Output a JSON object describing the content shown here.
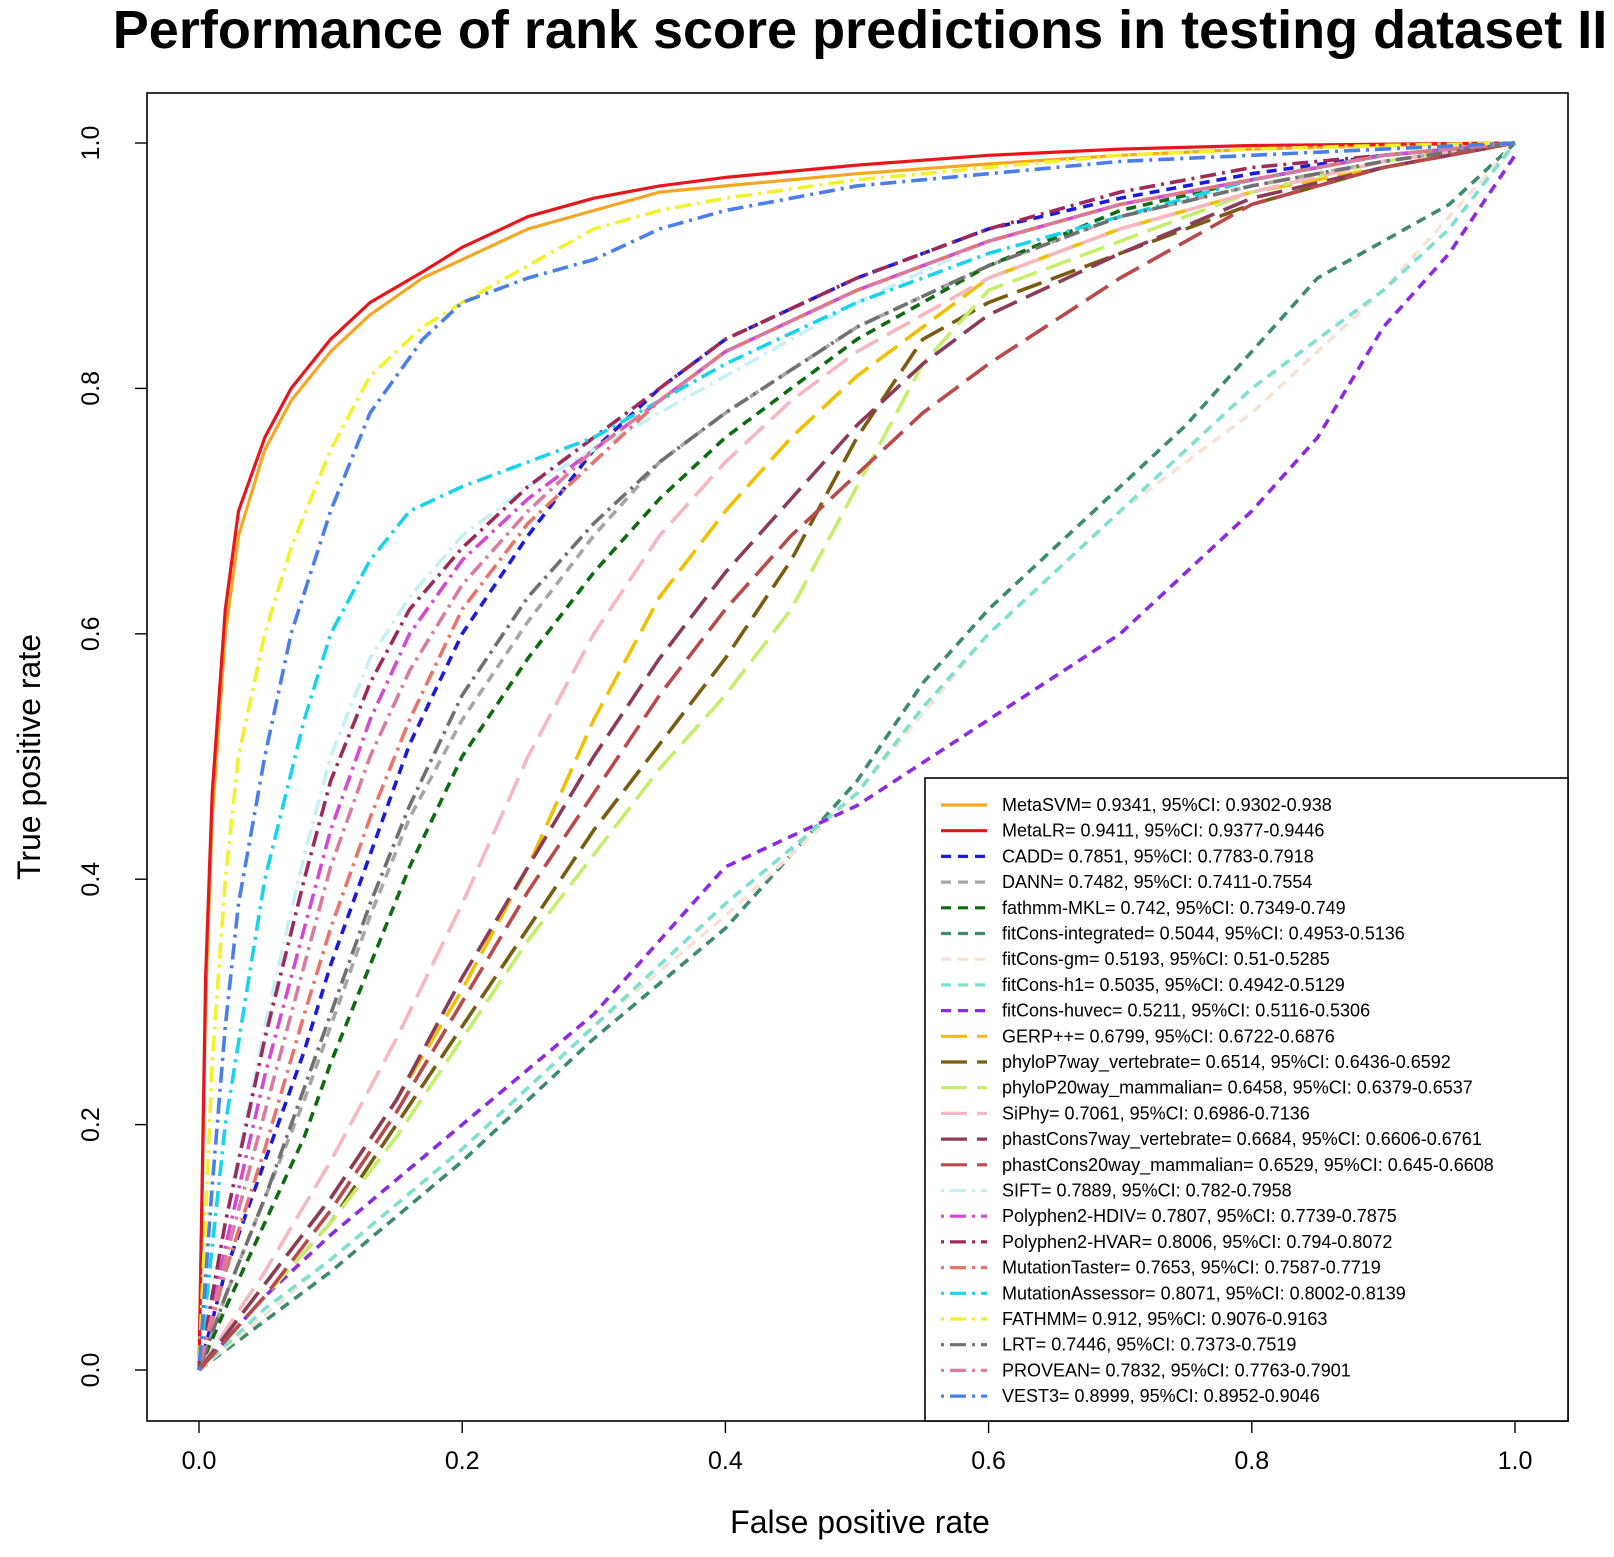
{
  "chart_data": {
    "type": "line",
    "title": "Performance of rank score predictions in testing dataset II",
    "xlabel": "False positive rate",
    "ylabel": "True positive rate",
    "xlim": [
      0,
      1
    ],
    "ylim": [
      0,
      1
    ],
    "xticks": [
      "0.0",
      "0.2",
      "0.4",
      "0.6",
      "0.8",
      "1.0"
    ],
    "yticks": [
      "0.0",
      "0.2",
      "0.4",
      "0.6",
      "0.8",
      "1.0"
    ],
    "grid": false,
    "legend_position": "bottom-right",
    "series": [
      {
        "name": "MetaSVM= 0.9341, 95%CI: 0.9302-0.938",
        "color": "#f5a623",
        "dash": "solid",
        "x": [
          0,
          0.005,
          0.01,
          0.02,
          0.03,
          0.05,
          0.07,
          0.1,
          0.13,
          0.17,
          0.2,
          0.25,
          0.3,
          0.35,
          0.4,
          0.5,
          0.6,
          0.7,
          0.8,
          0.9,
          1.0
        ],
        "y": [
          0,
          0.3,
          0.45,
          0.6,
          0.68,
          0.75,
          0.79,
          0.83,
          0.86,
          0.89,
          0.905,
          0.93,
          0.945,
          0.96,
          0.965,
          0.975,
          0.983,
          0.99,
          0.995,
          0.998,
          1.0
        ]
      },
      {
        "name": "MetaLR= 0.9411, 95%CI: 0.9377-0.9446",
        "color": "#e8161c",
        "dash": "solid",
        "x": [
          0,
          0.005,
          0.01,
          0.02,
          0.03,
          0.05,
          0.07,
          0.1,
          0.13,
          0.17,
          0.2,
          0.25,
          0.3,
          0.35,
          0.4,
          0.5,
          0.6,
          0.7,
          0.8,
          0.9,
          1.0
        ],
        "y": [
          0,
          0.32,
          0.47,
          0.62,
          0.7,
          0.76,
          0.8,
          0.84,
          0.87,
          0.895,
          0.915,
          0.94,
          0.955,
          0.965,
          0.972,
          0.982,
          0.99,
          0.995,
          0.998,
          0.999,
          1.0
        ]
      },
      {
        "name": "CADD= 0.7851, 95%CI: 0.7783-0.7918",
        "color": "#1a1adb",
        "dash": "dash",
        "x": [
          0,
          0.02,
          0.05,
          0.08,
          0.1,
          0.13,
          0.16,
          0.2,
          0.25,
          0.3,
          0.35,
          0.4,
          0.5,
          0.6,
          0.7,
          0.8,
          0.9,
          1.0
        ],
        "y": [
          0,
          0.08,
          0.17,
          0.26,
          0.33,
          0.42,
          0.51,
          0.6,
          0.68,
          0.75,
          0.8,
          0.84,
          0.89,
          0.93,
          0.955,
          0.975,
          0.99,
          1.0
        ]
      },
      {
        "name": "DANN= 0.7482, 95%CI: 0.7411-0.7554",
        "color": "#a6a6a6",
        "dash": "dash",
        "x": [
          0,
          0.02,
          0.05,
          0.08,
          0.1,
          0.13,
          0.16,
          0.2,
          0.25,
          0.3,
          0.35,
          0.4,
          0.5,
          0.6,
          0.7,
          0.8,
          0.9,
          1.0
        ],
        "y": [
          0,
          0.06,
          0.14,
          0.22,
          0.28,
          0.37,
          0.45,
          0.53,
          0.61,
          0.68,
          0.74,
          0.78,
          0.85,
          0.9,
          0.94,
          0.965,
          0.985,
          1.0
        ]
      },
      {
        "name": "fathmm-MKL= 0.742, 95%CI: 0.7349-0.749",
        "color": "#0f6b0f",
        "dash": "dash",
        "x": [
          0,
          0.02,
          0.05,
          0.08,
          0.1,
          0.13,
          0.16,
          0.2,
          0.25,
          0.3,
          0.35,
          0.4,
          0.5,
          0.6,
          0.7,
          0.8,
          0.9,
          1.0
        ],
        "y": [
          0,
          0.05,
          0.12,
          0.19,
          0.25,
          0.33,
          0.41,
          0.5,
          0.58,
          0.65,
          0.71,
          0.76,
          0.84,
          0.9,
          0.945,
          0.97,
          0.99,
          1.0
        ]
      },
      {
        "name": "fitCons-integrated= 0.5044, 95%CI: 0.4953-0.5136",
        "color": "#3d8a6e",
        "dash": "dash",
        "x": [
          0,
          0.05,
          0.1,
          0.2,
          0.3,
          0.4,
          0.5,
          0.55,
          0.6,
          0.65,
          0.7,
          0.75,
          0.8,
          0.85,
          0.9,
          0.95,
          1.0
        ],
        "y": [
          0,
          0.04,
          0.08,
          0.17,
          0.27,
          0.36,
          0.48,
          0.56,
          0.62,
          0.67,
          0.72,
          0.77,
          0.83,
          0.89,
          0.92,
          0.95,
          1.0
        ]
      },
      {
        "name": "fitCons-gm= 0.5193, 95%CI: 0.51-0.5285",
        "color": "#f6e3d3",
        "dash": "dash",
        "x": [
          0,
          0.1,
          0.2,
          0.3,
          0.4,
          0.5,
          0.6,
          0.7,
          0.8,
          0.9,
          1.0
        ],
        "y": [
          0,
          0.09,
          0.18,
          0.28,
          0.37,
          0.47,
          0.6,
          0.7,
          0.78,
          0.88,
          1.0
        ]
      },
      {
        "name": "fitCons-h1= 0.5035, 95%CI: 0.4942-0.5129",
        "color": "#7fe0d0",
        "dash": "dash",
        "x": [
          0,
          0.05,
          0.1,
          0.2,
          0.3,
          0.4,
          0.5,
          0.55,
          0.6,
          0.65,
          0.7,
          0.75,
          0.8,
          0.85,
          0.9,
          0.95,
          1.0
        ],
        "y": [
          0,
          0.05,
          0.09,
          0.18,
          0.28,
          0.38,
          0.47,
          0.54,
          0.6,
          0.65,
          0.7,
          0.75,
          0.8,
          0.84,
          0.88,
          0.93,
          1.0
        ]
      },
      {
        "name": "fitCons-huvec= 0.5211, 95%CI: 0.5116-0.5306",
        "color": "#8b2ae0",
        "dash": "dash",
        "x": [
          0,
          0.05,
          0.1,
          0.2,
          0.3,
          0.4,
          0.5,
          0.6,
          0.7,
          0.75,
          0.8,
          0.85,
          0.9,
          0.95,
          1.0
        ],
        "y": [
          0,
          0.06,
          0.11,
          0.2,
          0.29,
          0.41,
          0.46,
          0.53,
          0.6,
          0.65,
          0.7,
          0.76,
          0.85,
          0.91,
          0.99
        ]
      },
      {
        "name": "GERP++= 0.6799, 95%CI: 0.6722-0.6876",
        "color": "#f0c000",
        "dash": "longdash",
        "x": [
          0,
          0.05,
          0.1,
          0.15,
          0.2,
          0.25,
          0.3,
          0.35,
          0.4,
          0.45,
          0.5,
          0.55,
          0.6,
          0.7,
          0.8,
          0.9,
          1.0
        ],
        "y": [
          0,
          0.07,
          0.14,
          0.22,
          0.31,
          0.41,
          0.53,
          0.63,
          0.7,
          0.76,
          0.81,
          0.85,
          0.89,
          0.93,
          0.96,
          0.98,
          1.0
        ]
      },
      {
        "name": "phyloP7way_vertebrate= 0.6514, 95%CI: 0.6436-0.6592",
        "color": "#7a5c10",
        "dash": "longdash",
        "x": [
          0,
          0.05,
          0.1,
          0.15,
          0.2,
          0.25,
          0.3,
          0.35,
          0.4,
          0.45,
          0.5,
          0.55,
          0.6,
          0.7,
          0.8,
          0.9,
          1.0
        ],
        "y": [
          0,
          0.06,
          0.12,
          0.2,
          0.28,
          0.36,
          0.44,
          0.51,
          0.58,
          0.66,
          0.76,
          0.84,
          0.87,
          0.91,
          0.95,
          0.98,
          1.0
        ]
      },
      {
        "name": "phyloP20way_mammalian= 0.6458, 95%CI: 0.6379-0.6537",
        "color": "#c3ef6b",
        "dash": "longdash",
        "x": [
          0,
          0.05,
          0.1,
          0.15,
          0.2,
          0.25,
          0.3,
          0.35,
          0.4,
          0.45,
          0.5,
          0.55,
          0.6,
          0.7,
          0.8,
          0.9,
          1.0
        ],
        "y": [
          0,
          0.06,
          0.12,
          0.19,
          0.27,
          0.35,
          0.42,
          0.49,
          0.55,
          0.62,
          0.72,
          0.82,
          0.88,
          0.92,
          0.96,
          0.985,
          1.0
        ]
      },
      {
        "name": "SiPhy= 0.7061, 95%CI: 0.6986-0.7136",
        "color": "#f5b8c0",
        "dash": "longdash",
        "x": [
          0,
          0.05,
          0.1,
          0.15,
          0.2,
          0.25,
          0.3,
          0.35,
          0.4,
          0.45,
          0.5,
          0.6,
          0.7,
          0.8,
          0.9,
          1.0
        ],
        "y": [
          0,
          0.08,
          0.17,
          0.27,
          0.38,
          0.5,
          0.6,
          0.68,
          0.74,
          0.79,
          0.83,
          0.89,
          0.93,
          0.96,
          0.985,
          1.0
        ]
      },
      {
        "name": "phastCons7way_vertebrate= 0.6684, 95%CI: 0.6606-0.6761",
        "color": "#8b3a5a",
        "dash": "longdash",
        "x": [
          0,
          0.05,
          0.1,
          0.15,
          0.2,
          0.25,
          0.3,
          0.35,
          0.4,
          0.45,
          0.5,
          0.55,
          0.6,
          0.7,
          0.8,
          0.9,
          1.0
        ],
        "y": [
          0,
          0.07,
          0.14,
          0.22,
          0.32,
          0.41,
          0.5,
          0.58,
          0.65,
          0.71,
          0.77,
          0.82,
          0.86,
          0.91,
          0.955,
          0.98,
          1.0
        ]
      },
      {
        "name": "phastCons20way_mammalian= 0.6529, 95%CI: 0.645-0.6608",
        "color": "#b94a4a",
        "dash": "longdash",
        "x": [
          0,
          0.05,
          0.1,
          0.15,
          0.2,
          0.25,
          0.3,
          0.35,
          0.4,
          0.45,
          0.5,
          0.55,
          0.6,
          0.7,
          0.8,
          0.9,
          1.0
        ],
        "y": [
          0,
          0.06,
          0.13,
          0.21,
          0.3,
          0.39,
          0.47,
          0.55,
          0.62,
          0.68,
          0.73,
          0.78,
          0.82,
          0.89,
          0.95,
          0.98,
          1.0
        ]
      },
      {
        "name": "SIFT= 0.7889, 95%CI: 0.782-0.7958",
        "color": "#c6f0f5",
        "dash": "dashdot",
        "x": [
          0,
          0.02,
          0.05,
          0.08,
          0.1,
          0.13,
          0.16,
          0.2,
          0.25,
          0.3,
          0.35,
          0.4,
          0.5,
          0.6,
          0.7,
          0.8,
          0.9,
          1.0
        ],
        "y": [
          0,
          0.12,
          0.28,
          0.42,
          0.5,
          0.58,
          0.63,
          0.68,
          0.72,
          0.75,
          0.78,
          0.81,
          0.87,
          0.92,
          0.95,
          0.97,
          0.99,
          1.0
        ]
      },
      {
        "name": "Polyphen2-HDIV= 0.7807, 95%CI: 0.7739-0.7875",
        "color": "#d14ad1",
        "dash": "dashdot",
        "x": [
          0,
          0.02,
          0.05,
          0.08,
          0.1,
          0.13,
          0.16,
          0.2,
          0.25,
          0.3,
          0.35,
          0.4,
          0.5,
          0.6,
          0.7,
          0.8,
          0.9,
          1.0
        ],
        "y": [
          0,
          0.1,
          0.24,
          0.36,
          0.44,
          0.53,
          0.6,
          0.66,
          0.71,
          0.75,
          0.79,
          0.83,
          0.88,
          0.92,
          0.95,
          0.97,
          0.99,
          1.0
        ]
      },
      {
        "name": "Polyphen2-HVAR= 0.8006, 95%CI: 0.794-0.8072",
        "color": "#9e2a5a",
        "dash": "dashdot",
        "x": [
          0,
          0.02,
          0.05,
          0.08,
          0.1,
          0.13,
          0.16,
          0.2,
          0.25,
          0.3,
          0.35,
          0.4,
          0.5,
          0.6,
          0.7,
          0.8,
          0.9,
          1.0
        ],
        "y": [
          0,
          0.12,
          0.27,
          0.4,
          0.48,
          0.56,
          0.62,
          0.67,
          0.72,
          0.76,
          0.8,
          0.84,
          0.89,
          0.93,
          0.96,
          0.98,
          0.99,
          1.0
        ]
      },
      {
        "name": "MutationTaster= 0.7653, 95%CI: 0.7587-0.7719",
        "color": "#e8736b",
        "dash": "dashdot",
        "x": [
          0,
          0.02,
          0.05,
          0.08,
          0.1,
          0.13,
          0.16,
          0.2,
          0.25,
          0.3,
          0.35,
          0.4,
          0.5,
          0.6,
          0.7,
          0.8,
          0.9,
          1.0
        ],
        "y": [
          0,
          0.08,
          0.18,
          0.29,
          0.36,
          0.45,
          0.53,
          0.62,
          0.69,
          0.74,
          0.79,
          0.83,
          0.88,
          0.92,
          0.95,
          0.97,
          0.99,
          1.0
        ]
      },
      {
        "name": "MutationAssessor= 0.8071, 95%CI: 0.8002-0.8139",
        "color": "#18d4e8",
        "dash": "dashdot",
        "x": [
          0,
          0.02,
          0.05,
          0.08,
          0.1,
          0.13,
          0.16,
          0.2,
          0.25,
          0.3,
          0.35,
          0.4,
          0.5,
          0.6,
          0.7,
          0.8,
          0.9,
          1.0
        ],
        "y": [
          0,
          0.2,
          0.4,
          0.53,
          0.6,
          0.66,
          0.7,
          0.72,
          0.74,
          0.76,
          0.79,
          0.82,
          0.87,
          0.91,
          0.94,
          0.97,
          0.99,
          1.0
        ]
      },
      {
        "name": "FATHMM= 0.912, 95%CI: 0.9076-0.9163",
        "color": "#f2f22a",
        "dash": "dashdot",
        "x": [
          0,
          0.01,
          0.02,
          0.03,
          0.05,
          0.07,
          0.1,
          0.13,
          0.17,
          0.2,
          0.25,
          0.3,
          0.35,
          0.4,
          0.5,
          0.6,
          0.7,
          0.8,
          0.9,
          1.0
        ],
        "y": [
          0,
          0.25,
          0.4,
          0.5,
          0.6,
          0.67,
          0.75,
          0.81,
          0.85,
          0.87,
          0.9,
          0.93,
          0.945,
          0.955,
          0.97,
          0.98,
          0.99,
          0.995,
          0.998,
          1.0
        ]
      },
      {
        "name": "LRT= 0.7446, 95%CI: 0.7373-0.7519",
        "color": "#707070",
        "dash": "dashdot",
        "x": [
          0,
          0.02,
          0.05,
          0.08,
          0.1,
          0.13,
          0.16,
          0.2,
          0.25,
          0.3,
          0.35,
          0.4,
          0.5,
          0.6,
          0.7,
          0.8,
          0.9,
          1.0
        ],
        "y": [
          0,
          0.06,
          0.14,
          0.23,
          0.29,
          0.38,
          0.46,
          0.55,
          0.63,
          0.69,
          0.74,
          0.78,
          0.85,
          0.9,
          0.94,
          0.965,
          0.985,
          1.0
        ]
      },
      {
        "name": "PROVEAN= 0.7832, 95%CI: 0.7763-0.7901",
        "color": "#d97aa0",
        "dash": "dashdot",
        "x": [
          0,
          0.02,
          0.05,
          0.08,
          0.1,
          0.13,
          0.16,
          0.2,
          0.25,
          0.3,
          0.35,
          0.4,
          0.5,
          0.6,
          0.7,
          0.8,
          0.9,
          1.0
        ],
        "y": [
          0,
          0.09,
          0.21,
          0.33,
          0.41,
          0.5,
          0.57,
          0.64,
          0.7,
          0.75,
          0.79,
          0.83,
          0.88,
          0.92,
          0.95,
          0.97,
          0.99,
          1.0
        ]
      },
      {
        "name": "VEST3= 0.8999, 95%CI: 0.8952-0.9046",
        "color": "#4a7fe8",
        "dash": "dashdot",
        "x": [
          0,
          0.01,
          0.02,
          0.03,
          0.05,
          0.07,
          0.1,
          0.13,
          0.17,
          0.2,
          0.25,
          0.3,
          0.35,
          0.4,
          0.5,
          0.6,
          0.7,
          0.8,
          0.9,
          1.0
        ],
        "y": [
          0,
          0.15,
          0.28,
          0.38,
          0.5,
          0.6,
          0.7,
          0.78,
          0.84,
          0.87,
          0.89,
          0.905,
          0.93,
          0.945,
          0.965,
          0.975,
          0.985,
          0.99,
          0.995,
          1.0
        ]
      }
    ]
  }
}
